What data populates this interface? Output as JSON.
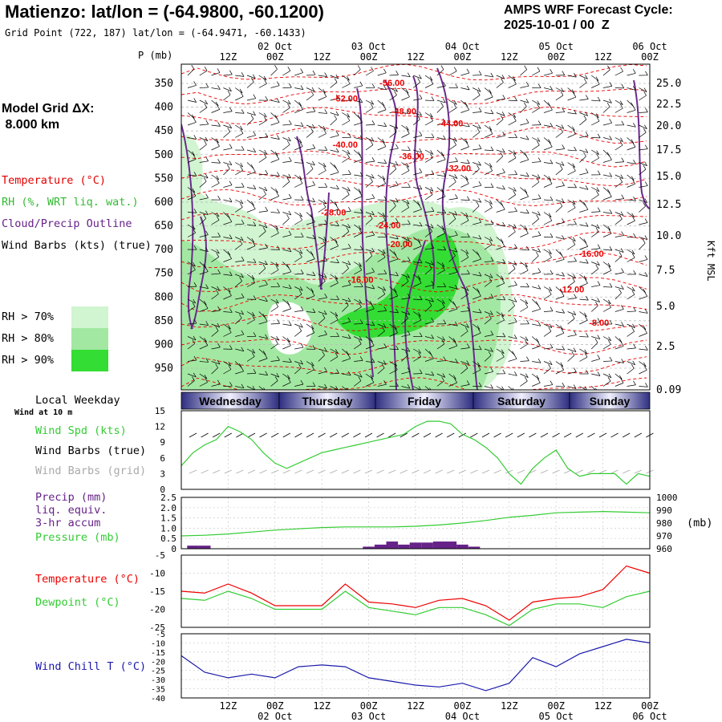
{
  "header": {
    "title": "Matienzo:  lat/lon = (-64.9800, -60.1200)",
    "grid_point": "Grid Point (722, 187) lat/lon = (-64.9471, -60.1433)",
    "cycle_line1": "AMPS WRF Forecast Cycle:",
    "cycle_line2": "2025-10-01 / 00  Z",
    "model_grid_label": "Model Grid ΔX:",
    "model_grid_value": "8.000 km"
  },
  "legend": {
    "temperature": "Temperature (°C)",
    "rh": "RH (%, WRT liq. wat.)",
    "cloud": "Cloud/Precip Outline",
    "wind": "Wind Barbs (kts) (true)",
    "rh70": "RH > 70%",
    "rh80": "RH > 80%",
    "rh90": "RH > 90%",
    "p_axis_label": "P (mb)",
    "kft_label": "Kft MSL"
  },
  "colors": {
    "temperature": "#ff0000",
    "cloud": "#6a2b8c",
    "rh70": "#d0f5d0",
    "rh80": "#a2e8a2",
    "rh90": "#33dd33",
    "wind_spd": "#33cc33",
    "precip": "#662288",
    "pressure": "#33cc33",
    "dewpoint": "#33cc33",
    "windchill": "#1a1aaa",
    "grid_barbs": "#aaaaaa"
  },
  "time_axis": {
    "top_dates": [
      "02 Oct",
      "03 Oct",
      "04 Oct",
      "05 Oct",
      "06 Oct"
    ],
    "top_hours": [
      "12Z",
      "00Z",
      "12Z",
      "00Z",
      "12Z",
      "00Z",
      "12Z",
      "00Z",
      "12Z",
      "00Z"
    ],
    "bottom_hours": [
      "12Z",
      "00Z",
      "12Z",
      "00Z",
      "12Z",
      "00Z",
      "12Z",
      "00Z",
      "12Z",
      "00Z"
    ],
    "bottom_dates": [
      "02 Oct",
      "03 Oct",
      "04 Oct",
      "05 Oct",
      "06 Oct"
    ]
  },
  "weekdays": {
    "label": "Local Weekday",
    "days": [
      "Wednesday",
      "Thursday",
      "Friday",
      "Saturday",
      "Sunday"
    ]
  },
  "surface_panel": {
    "wind_at": "Wind at 10 m",
    "wind_spd": "Wind Spd (kts)",
    "wind_barbs": "Wind Barbs (true)",
    "wind_barbs_grid": "Wind Barbs (grid)"
  },
  "precip_panel": {
    "precip": "Precip (mm)",
    "liq": "liq. equiv.",
    "accum": "3-hr accum",
    "pressure": "Pressure (mb)",
    "mb_label": "(mb)"
  },
  "temp_panel": {
    "temperature": "Temperature (°C)",
    "dewpoint": "Dewpoint (°C)"
  },
  "chill_panel": {
    "windchill": "Wind Chill T (°C)"
  },
  "chart_data": [
    {
      "type": "heatmap",
      "title": "Time-height cross section",
      "ylabel": "P (mb)",
      "y2label": "Kft MSL",
      "p_ticks": [
        350,
        400,
        450,
        500,
        550,
        600,
        650,
        700,
        750,
        800,
        850,
        900,
        950
      ],
      "kft_ticks": [
        "25.0",
        "22.5",
        "20.0",
        "17.5",
        "15.0",
        "12.5",
        "10.0",
        "7.5",
        "5.0",
        "2.5",
        "0.09"
      ],
      "temperature_contour_labels": [
        {
          "text": "-56.00",
          "time_h": 54,
          "p": 355
        },
        {
          "text": "-52.00",
          "time_h": 42,
          "p": 388
        },
        {
          "text": "-48.00",
          "time_h": 57,
          "p": 415
        },
        {
          "text": "-44.00",
          "time_h": 69,
          "p": 440
        },
        {
          "text": "-40.00",
          "time_h": 42,
          "p": 485
        },
        {
          "text": "-36.00",
          "time_h": 59,
          "p": 510
        },
        {
          "text": "-32.00",
          "time_h": 71,
          "p": 535
        },
        {
          "text": "-28.00",
          "time_h": 39,
          "p": 628
        },
        {
          "text": "-24.00",
          "time_h": 53,
          "p": 655
        },
        {
          "text": "-20.00",
          "time_h": 56,
          "p": 695
        },
        {
          "text": "-16.00",
          "time_h": 105,
          "p": 715
        },
        {
          "text": "-16.00",
          "time_h": 46,
          "p": 770
        },
        {
          "text": "-12.00",
          "time_h": 100,
          "p": 790
        },
        {
          "text": "-8.00",
          "time_h": 107,
          "p": 860
        }
      ]
    },
    {
      "type": "line",
      "title": "Wind Spd (kts)",
      "ylim": [
        0,
        15
      ],
      "y_ticks": [
        0,
        3,
        6,
        9,
        12,
        15
      ],
      "x_hours": [
        0,
        3,
        6,
        9,
        12,
        15,
        18,
        21,
        24,
        27,
        30,
        33,
        36,
        39,
        42,
        45,
        48,
        51,
        54,
        57,
        60,
        63,
        66,
        69,
        72,
        75,
        78,
        81,
        84,
        87,
        90,
        93,
        96,
        99,
        102,
        105,
        108,
        111,
        114,
        117,
        120
      ],
      "values": [
        4.5,
        7,
        8.5,
        9.5,
        12,
        11,
        9.5,
        7,
        5,
        4,
        5,
        6,
        7,
        7.5,
        8,
        8.5,
        9,
        9.5,
        10,
        10.5,
        12,
        13,
        13,
        12.5,
        10.5,
        9.5,
        8,
        6,
        3,
        1,
        4,
        6,
        7.5,
        4,
        2.5,
        3,
        3,
        3,
        1,
        3,
        2.5
      ]
    },
    {
      "type": "bar",
      "title": "Precip (mm) liq. equiv. 3-hr accum",
      "ylim": [
        0,
        2.5
      ],
      "y_ticks": [
        "0",
        "0.5",
        "1.0",
        "1.5",
        "2.0",
        "2.5"
      ],
      "x_hours": [
        3,
        6,
        48,
        51,
        54,
        57,
        60,
        63,
        66,
        69,
        72,
        75
      ],
      "values": [
        0.15,
        0.15,
        0.1,
        0.2,
        0.35,
        0.2,
        0.3,
        0.3,
        0.35,
        0.35,
        0.2,
        0.1
      ]
    },
    {
      "type": "line",
      "title": "Pressure (mb)",
      "ylim": [
        960,
        1000
      ],
      "y_ticks": [
        960,
        970,
        980,
        990,
        1000
      ],
      "x_hours": [
        0,
        6,
        12,
        18,
        24,
        30,
        36,
        42,
        48,
        54,
        60,
        66,
        72,
        78,
        84,
        90,
        96,
        102,
        108,
        114,
        120
      ],
      "values": [
        970,
        970.5,
        971.5,
        973,
        974.5,
        975.5,
        976.5,
        977,
        977,
        977,
        977.5,
        978.5,
        980,
        982,
        984.5,
        986,
        988,
        988.5,
        989,
        988.5,
        988
      ]
    },
    {
      "type": "line",
      "title": "Temperature / Dewpoint (°C)",
      "ylim": [
        -25,
        -5
      ],
      "y_ticks": [
        -5,
        -10,
        -15,
        -20,
        -25
      ],
      "x_hours": [
        0,
        6,
        12,
        18,
        24,
        30,
        36,
        42,
        48,
        54,
        60,
        66,
        72,
        78,
        84,
        90,
        96,
        102,
        108,
        114,
        120
      ],
      "series": [
        {
          "name": "Temperature (°C)",
          "values": [
            -15,
            -15.5,
            -13,
            -15.5,
            -19,
            -19,
            -19,
            -13,
            -18,
            -18.5,
            -19.5,
            -17.5,
            -17,
            -19,
            -23,
            -18,
            -17,
            -16.5,
            -14.5,
            -8,
            -10
          ]
        },
        {
          "name": "Dewpoint (°C)",
          "values": [
            -17,
            -17.5,
            -15,
            -17,
            -20,
            -20,
            -20,
            -15,
            -19.5,
            -20.5,
            -21.5,
            -19.5,
            -19.5,
            -21.5,
            -24.5,
            -20,
            -18.5,
            -18.5,
            -19.5,
            -16.5,
            -15
          ]
        }
      ]
    },
    {
      "type": "line",
      "title": "Wind Chill T (°C)",
      "ylim": [
        -40,
        -5
      ],
      "y_ticks": [
        -5,
        -10,
        -15,
        -20,
        -25,
        -30,
        -35,
        -40
      ],
      "x_hours": [
        0,
        6,
        12,
        18,
        24,
        30,
        36,
        42,
        48,
        54,
        60,
        66,
        72,
        78,
        84,
        90,
        96,
        102,
        108,
        114,
        120
      ],
      "values": [
        -17,
        -26,
        -29,
        -27,
        -29,
        -23,
        -22,
        -23,
        -29,
        -31,
        -33,
        -34,
        -32,
        -36,
        -32,
        -18,
        -23,
        -16,
        -12,
        -8,
        -10
      ]
    }
  ]
}
